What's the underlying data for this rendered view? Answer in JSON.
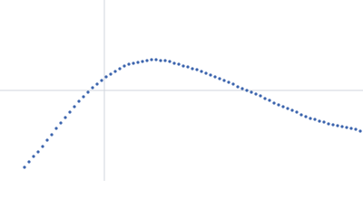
{
  "chart_data": {
    "type": "scatter",
    "color": "#3b64ad",
    "grid": true,
    "grid_color": "#d0d6de",
    "xlim": [
      0,
      400
    ],
    "ylim": [
      0,
      200
    ],
    "xticks": [
      115
    ],
    "yticks": [
      100
    ],
    "x": [
      27,
      32,
      37,
      42,
      47,
      52,
      57,
      62,
      67,
      72,
      77,
      82,
      87,
      92,
      97,
      102,
      107,
      112,
      117,
      122,
      127,
      132,
      137,
      142,
      147,
      152,
      157,
      162,
      167,
      172,
      177,
      182,
      187,
      192,
      197,
      202,
      207,
      212,
      217,
      222,
      227,
      232,
      237,
      242,
      247,
      252,
      257,
      262,
      267,
      272,
      277,
      282,
      287,
      292,
      297,
      302,
      307,
      312,
      317,
      322,
      327,
      332,
      337,
      342,
      347,
      352,
      357,
      362,
      367,
      372,
      377,
      382,
      387,
      392,
      397
    ],
    "values": [
      15,
      21,
      27,
      32,
      38,
      45,
      51,
      58,
      64,
      70,
      76,
      82,
      88,
      93,
      98,
      103,
      107,
      111,
      115,
      118,
      121,
      124,
      127,
      129,
      130,
      131,
      132,
      133,
      134,
      134,
      133,
      133,
      132,
      130,
      129,
      127,
      126,
      124,
      123,
      121,
      119,
      117,
      115,
      113,
      111,
      109,
      107,
      104,
      102,
      100,
      98,
      96,
      94,
      91,
      89,
      86,
      84,
      82,
      80,
      78,
      76,
      73,
      71,
      69,
      68,
      66,
      65,
      63,
      62,
      61,
      60,
      59,
      58,
      57,
      55
    ]
  }
}
